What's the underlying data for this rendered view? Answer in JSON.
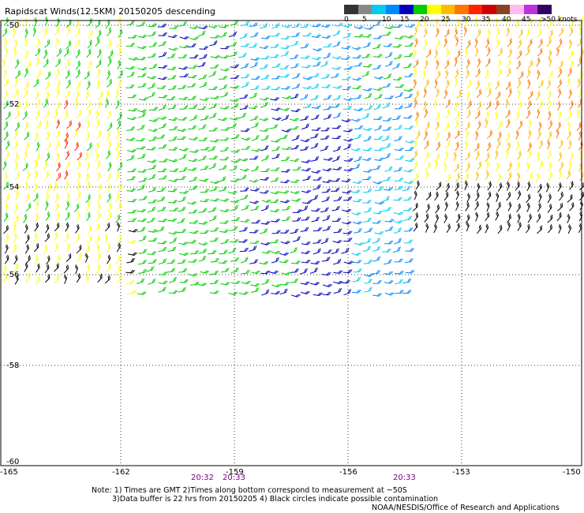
{
  "title": "Rapidscat Winds(12.5KM) 20150205 descending",
  "legend": {
    "colors": [
      "#333333",
      "#888888",
      "#00ccee",
      "#0088ff",
      "#0000bb",
      "#00cc00",
      "#ffff00",
      "#ffbb00",
      "#ff7700",
      "#ff2200",
      "#cc0000",
      "#884422",
      "#ffbbee",
      "#bb33dd",
      "#330066"
    ],
    "ticks": [
      "0",
      "5",
      "10",
      "15",
      "20",
      "25",
      "30",
      "35",
      "40",
      "45",
      ">50 knots"
    ]
  },
  "lat_labels": [
    "-50",
    "-52",
    "-54",
    "-56",
    "-58",
    "-60"
  ],
  "lon_labels": [
    "-165",
    "-162",
    "-159",
    "-156",
    "-153",
    "-150"
  ],
  "time_labels": [
    "20:32",
    "20:33",
    "20:33"
  ],
  "notes": {
    "line1": "Note: 1) Times are GMT 2)Times along bottom correspond to measurement at ~50S",
    "line2": "3)Data buffer is 22 hrs from 20150205 4) Black circles indicate possible contamination",
    "credit": "NOAA/NESDIS/Office of Research and Applications"
  }
}
